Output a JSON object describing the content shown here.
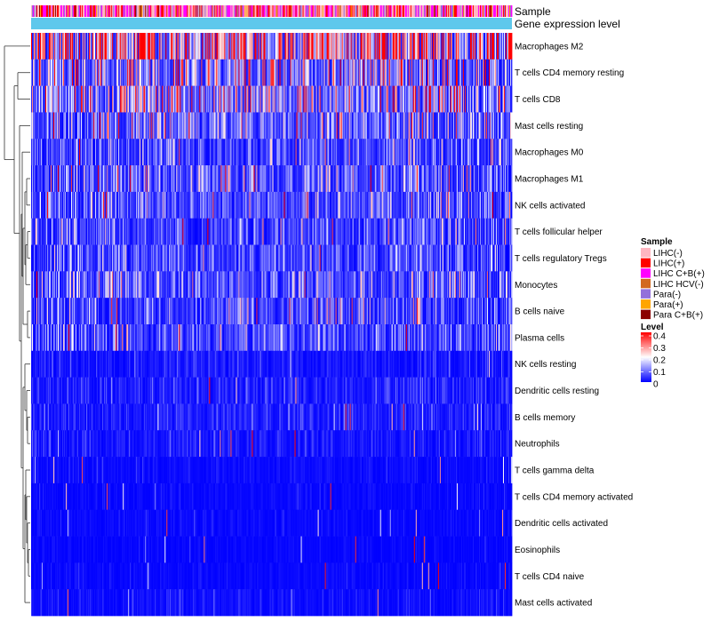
{
  "chart_data": {
    "type": "heatmap",
    "title": "",
    "annotation_rows": [
      {
        "name": "Sample",
        "label": "Sample"
      },
      {
        "name": "gene-expression",
        "label": "Gene expression level"
      }
    ],
    "rows": [
      {
        "label": "Macrophages M2",
        "mean": 0.3
      },
      {
        "label": "T cells CD4 memory resting",
        "mean": 0.14
      },
      {
        "label": "T cells CD8",
        "mean": 0.14
      },
      {
        "label": "Mast cells resting",
        "mean": 0.09
      },
      {
        "label": "Macrophages M0",
        "mean": 0.06
      },
      {
        "label": "Macrophages M1",
        "mean": 0.08
      },
      {
        "label": "NK cells activated",
        "mean": 0.07
      },
      {
        "label": "T cells follicular helper",
        "mean": 0.06
      },
      {
        "label": "T cells regulatory  Tregs",
        "mean": 0.06
      },
      {
        "label": "Monocytes",
        "mean": 0.07
      },
      {
        "label": "B cells naive",
        "mean": 0.06
      },
      {
        "label": "Plasma cells",
        "mean": 0.06
      },
      {
        "label": "NK cells resting",
        "mean": 0.02
      },
      {
        "label": "Dendritic cells resting",
        "mean": 0.025
      },
      {
        "label": "B cells memory",
        "mean": 0.025
      },
      {
        "label": "Neutrophils",
        "mean": 0.02
      },
      {
        "label": "T cells gamma delta",
        "mean": 0.01
      },
      {
        "label": "T cells CD4 memory activated",
        "mean": 0.008
      },
      {
        "label": "Dendritic cells activated",
        "mean": 0.008
      },
      {
        "label": "Eosinophils",
        "mean": 0.005
      },
      {
        "label": "T cells CD4 naive",
        "mean": 0.008
      },
      {
        "label": "Mast cells activated",
        "mean": 0.012
      }
    ],
    "legend_sample": {
      "title": "Sample",
      "items": [
        {
          "label": "LIHC(-)",
          "color": "#FFB6C1"
        },
        {
          "label": "LIHC(+)",
          "color": "#FF0000"
        },
        {
          "label": "LIHC C+B(+)",
          "color": "#FF00FF"
        },
        {
          "label": "LIHC HCV(-)",
          "color": "#D2691E"
        },
        {
          "label": "Para(-)",
          "color": "#9370DB"
        },
        {
          "label": "Para(+)",
          "color": "#FFA500"
        },
        {
          "label": "Para C+B(+)",
          "color": "#8B0000"
        }
      ]
    },
    "legend_level": {
      "title": "Level",
      "ticks": [
        "0.4",
        "0.3",
        "0.2",
        "0.1",
        "0"
      ],
      "range": [
        0,
        0.4
      ],
      "colors": [
        "#0000FF",
        "#FFFFFF",
        "#FF0000"
      ]
    },
    "gene_expression_color": "#5EC8EC",
    "n_samples": 540
  }
}
